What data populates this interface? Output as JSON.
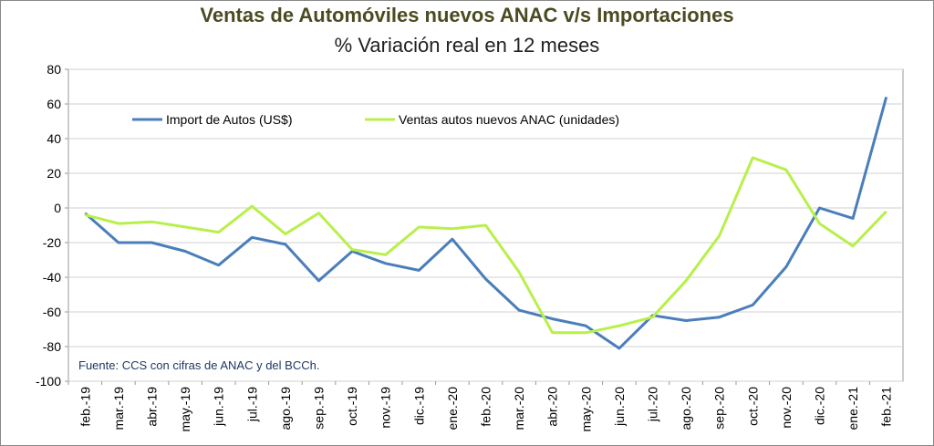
{
  "chart_data": {
    "type": "line",
    "title": "Ventas de Automóviles nuevos ANAC v/s Importaciones",
    "subtitle": "% Variación real en 12 meses",
    "source": "Fuente: CCS con cifras de ANAC y del BCCh.",
    "categories": [
      "feb.-19",
      "mar.-19",
      "abr.-19",
      "may.-19",
      "jun.-19",
      "jul.-19",
      "ago.-19",
      "sep.-19",
      "oct.-19",
      "nov.-19",
      "dic.-19",
      "ene.-20",
      "feb.-20",
      "mar.-20",
      "abr.-20",
      "may.-20",
      "jun.-20",
      "jul.-20",
      "ago.-20",
      "sep.-20",
      "oct.-20",
      "nov.-20",
      "dic.-20",
      "ene.-21",
      "feb.-21"
    ],
    "series": [
      {
        "name": "Import de Autos (US$)",
        "color": "#4a7ebb",
        "values": [
          -3,
          -20,
          -20,
          -25,
          -33,
          -17,
          -21,
          -42,
          -25,
          -32,
          -36,
          -18,
          -41,
          -59,
          -64,
          -68,
          -81,
          -62,
          -65,
          -63,
          -56,
          -34,
          0,
          -6,
          64
        ]
      },
      {
        "name": "Ventas autos nuevos ANAC (unidades)",
        "color": "#b8f04a",
        "values": [
          -4,
          -9,
          -8,
          -11,
          -14,
          1,
          -15,
          -3,
          -24,
          -27,
          -11,
          -12,
          -10,
          -37,
          -72,
          -72,
          -68,
          -63,
          -42,
          -16,
          29,
          22,
          -9,
          -22,
          -2
        ]
      }
    ],
    "ylim": [
      -100,
      80
    ],
    "yticks": [
      -100,
      -80,
      -60,
      -40,
      -20,
      0,
      20,
      40,
      60,
      80
    ],
    "grid": true
  }
}
